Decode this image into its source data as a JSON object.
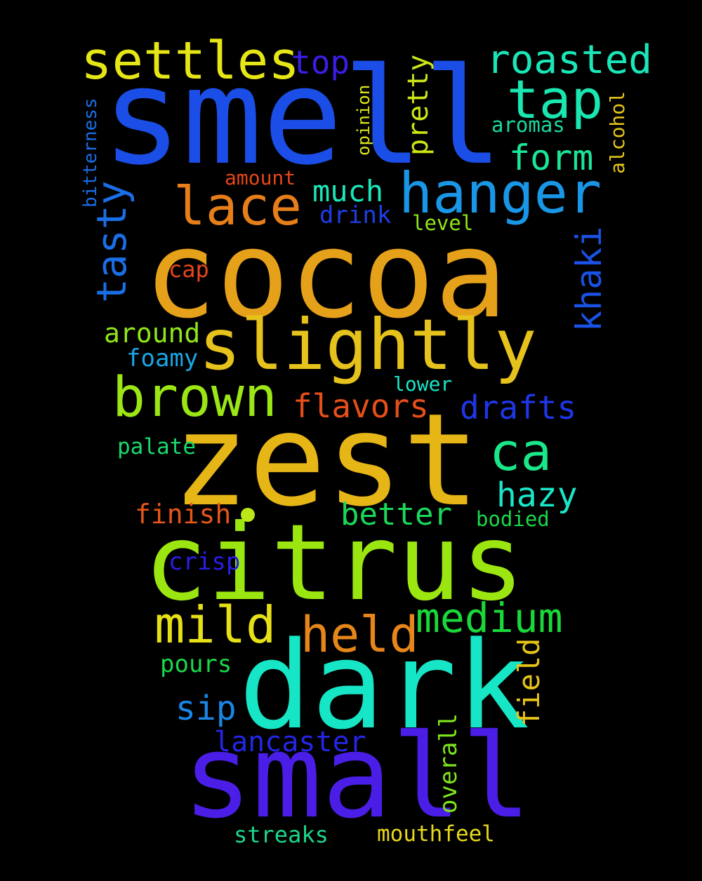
{
  "words": {
    "smell": {
      "text": "smell",
      "color": "#1b4ee6"
    },
    "cocoa": {
      "text": "cocoa",
      "color": "#e6a11a"
    },
    "zest": {
      "text": "zest",
      "color": "#e6b616"
    },
    "citrus": {
      "text": "citrus",
      "color": "#9be611"
    },
    "dark": {
      "text": "dark",
      "color": "#16e6c5"
    },
    "small": {
      "text": "small",
      "color": "#4a1ee6"
    },
    "slightly": {
      "text": "slightly",
      "color": "#e6c21c"
    },
    "hanger": {
      "text": "hanger",
      "color": "#1a96e6"
    },
    "settles": {
      "text": "settles",
      "color": "#e6e616"
    },
    "lace": {
      "text": "lace",
      "color": "#e67e1a"
    },
    "tap": {
      "text": "tap",
      "color": "#1ae6b0"
    },
    "brown": {
      "text": "brown",
      "color": "#9be614"
    },
    "ca": {
      "text": "ca",
      "color": "#1ae68a"
    },
    "mild": {
      "text": "mild",
      "color": "#e6e016"
    },
    "held": {
      "text": "held",
      "color": "#e6861a"
    },
    "roasted": {
      "text": "roasted",
      "color": "#1ae6b8"
    },
    "medium": {
      "text": "medium",
      "color": "#1ad83a"
    },
    "tasty": {
      "text": "tasty",
      "color": "#1a6ee6"
    },
    "khaki": {
      "text": "khaki",
      "color": "#1a52e6"
    },
    "flavors": {
      "text": "flavors",
      "color": "#e64e1a"
    },
    "drafts": {
      "text": "drafts",
      "color": "#1e36e6"
    },
    "better": {
      "text": "better",
      "color": "#1ad85a"
    },
    "hazy": {
      "text": "hazy",
      "color": "#1ae6c8"
    },
    "form": {
      "text": "form",
      "color": "#1ae698"
    },
    "top": {
      "text": "top",
      "color": "#3a1ee6"
    },
    "pretty": {
      "text": "pretty",
      "color": "#cce616"
    },
    "much": {
      "text": "much",
      "color": "#1ae6b8"
    },
    "field": {
      "text": "field",
      "color": "#e6c41a"
    },
    "sip": {
      "text": "sip",
      "color": "#1a86e6"
    },
    "around": {
      "text": "around",
      "color": "#8ee61a"
    },
    "finish": {
      "text": "finish",
      "color": "#e6561a"
    },
    "lancaster": {
      "text": "lancaster",
      "color": "#2426e6"
    },
    "overall": {
      "text": "overall",
      "color": "#7ee61a"
    },
    "drink": {
      "text": "drink",
      "color": "#1e3ee6"
    },
    "foamy": {
      "text": "foamy",
      "color": "#1aa6e6"
    },
    "crisp": {
      "text": "crisp",
      "color": "#2a1ee6"
    },
    "pours": {
      "text": "pours",
      "color": "#1ad84a"
    },
    "cap": {
      "text": "cap",
      "color": "#e6461a"
    },
    "streaks": {
      "text": "streaks",
      "color": "#1ad88a"
    },
    "mouthfeel": {
      "text": "mouthfeel",
      "color": "#e6d81a"
    },
    "aromas": {
      "text": "aromas",
      "color": "#1ad8a0"
    },
    "alcohol": {
      "text": "alcohol",
      "color": "#e6c61a"
    },
    "level": {
      "text": "level",
      "color": "#8ee61a"
    },
    "amount": {
      "text": "amount",
      "color": "#e6461a"
    },
    "bitterness": {
      "text": "bitterness",
      "color": "#1a6ee6"
    },
    "opinion": {
      "text": "opinion",
      "color": "#d8e61a"
    },
    "lower": {
      "text": "lower",
      "color": "#1ae6c8"
    },
    "palate": {
      "text": "palate",
      "color": "#1ad86a"
    },
    "bodied": {
      "text": "bodied",
      "color": "#1ad84a"
    }
  },
  "dot_color": "#bbe61a"
}
